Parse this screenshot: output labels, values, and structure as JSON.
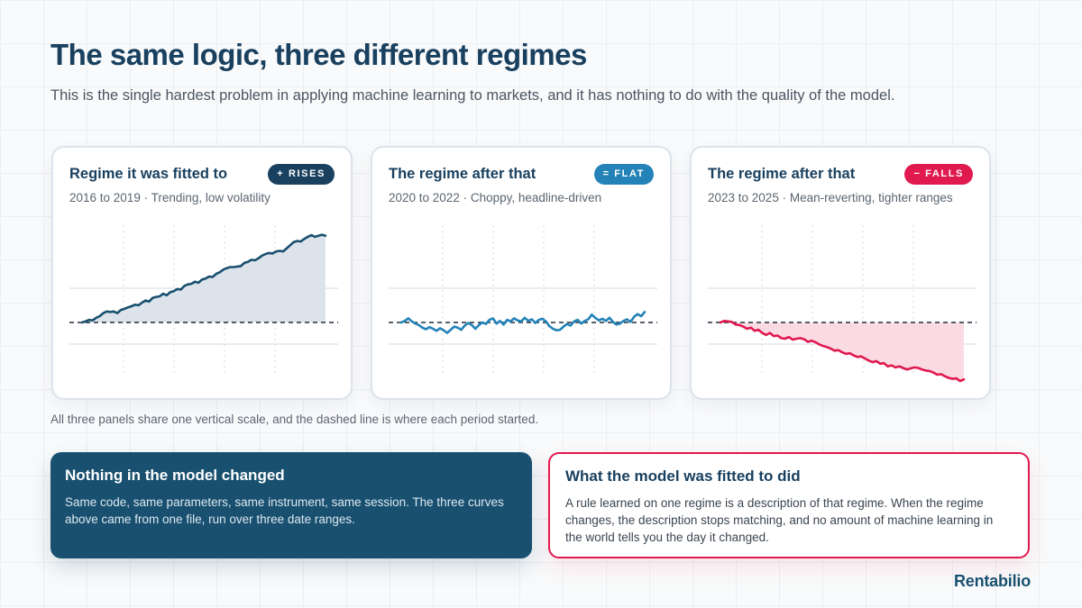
{
  "header": {
    "title": "The same logic, three different regimes",
    "subtitle": "This is the single hardest problem in applying machine learning to markets, and it has nothing to do with the quality of the model."
  },
  "panels": [
    {
      "title": "Regime it was fitted to",
      "badge": "+ RISES",
      "badge_color": "#19405f",
      "subtitle": "2016 to 2019 · Trending, low volatility"
    },
    {
      "title": "The regime after that",
      "badge": "= FLAT",
      "badge_color": "#2383b8",
      "subtitle": "2020 to 2022 · Choppy, headline-driven"
    },
    {
      "title": "The regime after that",
      "badge": "− FALLS",
      "badge_color": "#e0194f",
      "subtitle": "2023 to 2025 · Mean-reverting, tighter ranges"
    }
  ],
  "chart_data": [
    {
      "type": "area",
      "title": "Regime it was fitted to",
      "color": "#19506f",
      "fill": "#dde3eb",
      "baseline": 0,
      "ylim": [
        -1.0,
        2.0
      ],
      "grid": true,
      "x": [
        0,
        1,
        2,
        3,
        4,
        5,
        6,
        7,
        8,
        9,
        10,
        11,
        12,
        13,
        14,
        15,
        16,
        17,
        18,
        19,
        20,
        21,
        22,
        23,
        24,
        25,
        26,
        27,
        28,
        29,
        30,
        31,
        32,
        33,
        34,
        35,
        36,
        37,
        38,
        39,
        40,
        41,
        42,
        43,
        44,
        45,
        46,
        47,
        48,
        49,
        50,
        51,
        52,
        53,
        54,
        55,
        56,
        57,
        58,
        59,
        60,
        61,
        62,
        63,
        64,
        65,
        66,
        67,
        68,
        69
      ],
      "y": [
        0,
        0.02,
        0.05,
        0.04,
        0.09,
        0.12,
        0.18,
        0.21,
        0.2,
        0.21,
        0.18,
        0.24,
        0.26,
        0.29,
        0.31,
        0.34,
        0.33,
        0.38,
        0.42,
        0.4,
        0.47,
        0.49,
        0.5,
        0.55,
        0.52,
        0.58,
        0.6,
        0.64,
        0.63,
        0.7,
        0.73,
        0.74,
        0.78,
        0.76,
        0.82,
        0.84,
        0.88,
        0.87,
        0.93,
        0.96,
        1.01,
        1.04,
        1.06,
        1.06,
        1.07,
        1.08,
        1.14,
        1.16,
        1.2,
        1.19,
        1.23,
        1.28,
        1.31,
        1.33,
        1.32,
        1.36,
        1.37,
        1.36,
        1.42,
        1.48,
        1.54,
        1.56,
        1.55,
        1.6,
        1.64,
        1.67,
        1.64,
        1.66,
        1.68,
        1.66
      ]
    },
    {
      "type": "line",
      "title": "The regime after that",
      "color": "#2383b8",
      "baseline": 0,
      "ylim": [
        -1.0,
        2.0
      ],
      "grid": true,
      "x": [
        0,
        1,
        2,
        3,
        4,
        5,
        6,
        7,
        8,
        9,
        10,
        11,
        12,
        13,
        14,
        15,
        16,
        17,
        18,
        19,
        20,
        21,
        22,
        23,
        24,
        25,
        26,
        27,
        28,
        29,
        30,
        31,
        32,
        33,
        34,
        35,
        36,
        37,
        38,
        39,
        40,
        41,
        42,
        43,
        44,
        45,
        46,
        47,
        48,
        49,
        50,
        51,
        52,
        53,
        54,
        55,
        56,
        57,
        58,
        59,
        60,
        61,
        62,
        63,
        64,
        65,
        66,
        67,
        68,
        69
      ],
      "y": [
        0,
        0.03,
        0.08,
        0.02,
        -0.02,
        -0.05,
        -0.1,
        -0.13,
        -0.09,
        -0.12,
        -0.16,
        -0.11,
        -0.15,
        -0.2,
        -0.14,
        -0.08,
        -0.1,
        -0.14,
        -0.06,
        -0.01,
        -0.05,
        -0.12,
        -0.05,
        0,
        -0.03,
        0.05,
        0.08,
        -0.02,
        0.03,
        -0.04,
        0.05,
        0.02,
        0.08,
        0.04,
        0.02,
        0.09,
        0.03,
        0.06,
        -0.01,
        0.05,
        0.07,
        0.02,
        -0.07,
        -0.12,
        -0.15,
        -0.14,
        -0.08,
        -0.03,
        -0.06,
        0.02,
        0.05,
        -0.02,
        0.03,
        0.06,
        0.15,
        0.09,
        0.04,
        0.07,
        0.03,
        0.09,
        0.01,
        -0.04,
        -0.02,
        0.03,
        0.06,
        0.01,
        0.11,
        0.16,
        0.12,
        0.2
      ]
    },
    {
      "type": "area",
      "title": "The regime after that",
      "color": "#e0194f",
      "fill": "#fbdbe3",
      "baseline": 0,
      "ylim": [
        -1.0,
        2.0
      ],
      "grid": true,
      "x": [
        0,
        1,
        2,
        3,
        4,
        5,
        6,
        7,
        8,
        9,
        10,
        11,
        12,
        13,
        14,
        15,
        16,
        17,
        18,
        19,
        20,
        21,
        22,
        23,
        24,
        25,
        26,
        27,
        28,
        29,
        30,
        31,
        32,
        33,
        34,
        35,
        36,
        37,
        38,
        39,
        40,
        41,
        42,
        43,
        44,
        45,
        46,
        47,
        48,
        49,
        50,
        51,
        52,
        53,
        54,
        55,
        56,
        57,
        58,
        59,
        60,
        61,
        62,
        63,
        64
      ],
      "y": [
        0,
        0.03,
        0.02,
        0.01,
        -0.04,
        -0.05,
        -0.08,
        -0.12,
        -0.1,
        -0.16,
        -0.14,
        -0.2,
        -0.24,
        -0.2,
        -0.26,
        -0.25,
        -0.3,
        -0.31,
        -0.28,
        -0.33,
        -0.31,
        -0.3,
        -0.32,
        -0.37,
        -0.35,
        -0.38,
        -0.42,
        -0.45,
        -0.47,
        -0.5,
        -0.54,
        -0.53,
        -0.57,
        -0.6,
        -0.59,
        -0.63,
        -0.66,
        -0.65,
        -0.69,
        -0.73,
        -0.76,
        -0.74,
        -0.79,
        -0.78,
        -0.84,
        -0.82,
        -0.86,
        -0.84,
        -0.87,
        -0.9,
        -0.88,
        -0.86,
        -0.87,
        -0.9,
        -0.92,
        -0.93,
        -0.96,
        -1.0,
        -0.99,
        -1.03,
        -1.06,
        -1.08,
        -1.07,
        -1.12,
        -1.09
      ]
    }
  ],
  "footnote": "All three panels share one vertical scale, and the dashed line is where each period started.",
  "cards": {
    "dark": {
      "title": "Nothing in the model changed",
      "body": "Same code, same parameters, same instrument, same session. The three curves above came from one file, run over three date ranges."
    },
    "light": {
      "title": "What the model was fitted to did",
      "body": "A rule learned on one regime is a description of that regime. When the regime changes, the description stops matching, and no amount of machine learning in the world tells you the day it changed."
    }
  },
  "brand": "Rentabilio"
}
